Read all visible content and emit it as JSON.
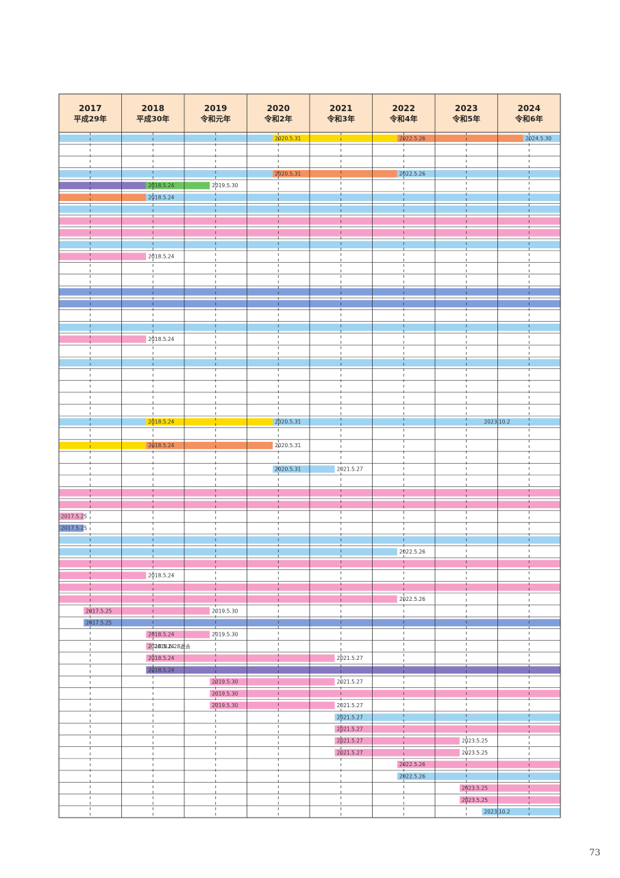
{
  "page_number": "73",
  "colors": {
    "blue": "#9fd3f2",
    "pink": "#f6a0c9",
    "orange": "#f49160",
    "yellow": "#fcdb00",
    "purple": "#8678c0",
    "green": "#6cc460",
    "navy": "#7f9edb",
    "header_bg": "#fde3c8",
    "grid": "#333333"
  },
  "chart_data": {
    "type": "table",
    "title": "",
    "xlim": [
      "2017-01-01",
      "2025-01-01"
    ],
    "years": [
      {
        "year": "2017",
        "era": "平成29年"
      },
      {
        "year": "2018",
        "era": "平成30年"
      },
      {
        "year": "2019",
        "era": "令和元年"
      },
      {
        "year": "2020",
        "era": "令和2年"
      },
      {
        "year": "2021",
        "era": "令和3年"
      },
      {
        "year": "2022",
        "era": "令和4年"
      },
      {
        "year": "2023",
        "era": "令和5年"
      },
      {
        "year": "2024",
        "era": "令和6年"
      }
    ],
    "rows": [
      [
        {
          "s": "2017-01-01",
          "e": "2020-05-31",
          "c": "blue"
        },
        {
          "s": "2020-05-31",
          "e": "2022-05-26",
          "c": "yellow",
          "l": "2020.5.31"
        },
        {
          "s": "2022-05-26",
          "e": "2024-05-30",
          "c": "orange",
          "l": "2022.5.26"
        },
        {
          "s": "2024-05-30",
          "e": "2025-01-01",
          "c": "blue",
          "l": "2024.5.30"
        }
      ],
      [],
      [],
      [
        {
          "s": "2017-01-01",
          "e": "2020-05-31",
          "c": "blue"
        },
        {
          "s": "2020-05-31",
          "e": "2022-05-26",
          "c": "orange",
          "l": "2020.5.31"
        },
        {
          "s": "2022-05-26",
          "e": "2025-01-01",
          "c": "blue",
          "l": "2022.5.26"
        }
      ],
      [
        {
          "s": "2017-01-01",
          "e": "2018-05-24",
          "c": "purple"
        },
        {
          "s": "2018-05-24",
          "e": "2019-05-30",
          "c": "green",
          "l": "2018.5.24"
        },
        {
          "s": "2019-05-30",
          "e": "2019-05-30",
          "c": "blue",
          "l": "2019.5.30"
        }
      ],
      [
        {
          "s": "2017-01-01",
          "e": "2018-05-24",
          "c": "orange"
        },
        {
          "s": "2018-05-24",
          "e": "2025-01-01",
          "c": "blue",
          "l": "2018.5.24"
        }
      ],
      [
        {
          "s": "2017-01-01",
          "e": "2025-01-01",
          "c": "blue"
        }
      ],
      [
        {
          "s": "2017-01-01",
          "e": "2025-01-01",
          "c": "pink"
        }
      ],
      [
        {
          "s": "2017-01-01",
          "e": "2025-01-01",
          "c": "pink"
        }
      ],
      [
        {
          "s": "2017-01-01",
          "e": "2025-01-01",
          "c": "blue"
        }
      ],
      [
        {
          "s": "2017-01-01",
          "e": "2018-05-24",
          "c": "pink"
        },
        {
          "s": "2018-05-24",
          "e": "2018-05-24",
          "c": "pink",
          "l": "2018.5.24"
        }
      ],
      [],
      [],
      [
        {
          "s": "2017-01-01",
          "e": "2025-01-01",
          "c": "navy"
        }
      ],
      [
        {
          "s": "2017-01-01",
          "e": "2025-01-01",
          "c": "navy"
        }
      ],
      [],
      [
        {
          "s": "2017-01-01",
          "e": "2025-01-01",
          "c": "blue"
        }
      ],
      [
        {
          "s": "2017-01-01",
          "e": "2018-05-24",
          "c": "pink"
        },
        {
          "s": "2018-05-24",
          "e": "2018-05-24",
          "c": "pink",
          "l": "2018.5.24"
        }
      ],
      [],
      [
        {
          "s": "2017-01-01",
          "e": "2025-01-01",
          "c": "blue"
        }
      ],
      [],
      [],
      [],
      [],
      [
        {
          "s": "2017-01-01",
          "e": "2018-05-24",
          "c": "blue"
        },
        {
          "s": "2018-05-24",
          "e": "2020-05-31",
          "c": "yellow",
          "l": "2018.5.24"
        },
        {
          "s": "2020-05-31",
          "e": "2023-10-02",
          "c": "blue",
          "l": "2020.5.31"
        },
        {
          "s": "2023-10-02",
          "e": "2025-01-01",
          "c": "blue",
          "l": "2023.10.2"
        }
      ],
      [],
      [
        {
          "s": "2017-01-01",
          "e": "2018-05-24",
          "c": "yellow"
        },
        {
          "s": "2018-05-24",
          "e": "2020-05-31",
          "c": "orange",
          "l": "2018.5.24"
        },
        {
          "s": "2020-05-31",
          "e": "2020-05-31",
          "c": "orange",
          "l": "2020.5.31"
        }
      ],
      [],
      [
        {
          "s": "2020-05-31",
          "e": "2021-05-27",
          "c": "blue",
          "l": "2020.5.31"
        },
        {
          "s": "2021-05-27",
          "e": "2021-05-27",
          "c": "blue",
          "l": "2021.5.27"
        }
      ],
      [],
      [
        {
          "s": "2017-01-01",
          "e": "2025-01-01",
          "c": "pink"
        }
      ],
      [
        {
          "s": "2017-01-01",
          "e": "2025-01-01",
          "c": "pink"
        }
      ],
      [
        {
          "s": "2017-01-01",
          "e": "2017-05-25",
          "c": "pink",
          "l": "2017.5.25",
          "la": "start"
        }
      ],
      [
        {
          "s": "2017-01-01",
          "e": "2017-05-25",
          "c": "navy",
          "l": "2017.5.25",
          "la": "start"
        }
      ],
      [
        {
          "s": "2017-01-01",
          "e": "2025-01-01",
          "c": "blue"
        }
      ],
      [
        {
          "s": "2017-01-01",
          "e": "2022-05-26",
          "c": "blue"
        },
        {
          "s": "2022-05-26",
          "e": "2022-05-26",
          "c": "blue",
          "l": "2022.5.26"
        }
      ],
      [
        {
          "s": "2017-01-01",
          "e": "2025-01-01",
          "c": "pink"
        }
      ],
      [
        {
          "s": "2017-01-01",
          "e": "2018-05-24",
          "c": "pink"
        },
        {
          "s": "2018-05-24",
          "e": "2018-05-24",
          "c": "pink",
          "l": "2018.5.24"
        }
      ],
      [
        {
          "s": "2017-01-01",
          "e": "2025-01-01",
          "c": "pink"
        }
      ],
      [
        {
          "s": "2017-01-01",
          "e": "2022-05-26",
          "c": "pink"
        },
        {
          "s": "2022-05-26",
          "e": "2022-05-26",
          "c": "pink",
          "l": "2022.5.26"
        }
      ],
      [
        {
          "s": "2017-05-25",
          "e": "2019-05-30",
          "c": "pink",
          "l": "2017.5.25"
        },
        {
          "s": "2019-05-30",
          "e": "2019-05-30",
          "c": "pink",
          "l": "2019.5.30"
        }
      ],
      [
        {
          "s": "2017-05-25",
          "e": "2025-01-01",
          "c": "navy",
          "l": "2017.5.25"
        }
      ],
      [
        {
          "s": "2018-05-24",
          "e": "2019-05-30",
          "c": "pink",
          "l": "2018.5.24"
        },
        {
          "s": "2019-05-30",
          "e": "2019-05-30",
          "c": "pink",
          "l": "2019.5.30"
        }
      ],
      [
        {
          "s": "2018-05-24",
          "e": "2018-06-28",
          "c": "pink",
          "l": "2018.5.24"
        },
        {
          "s": "2018-06-28",
          "e": "2018-06-28",
          "c": "none",
          "l": "2018.6.28逝去"
        }
      ],
      [
        {
          "s": "2018-05-24",
          "e": "2021-05-27",
          "c": "pink",
          "l": "2018.5.24"
        },
        {
          "s": "2021-05-27",
          "e": "2021-05-27",
          "c": "pink",
          "l": "2021.5.27"
        }
      ],
      [
        {
          "s": "2018-05-24",
          "e": "2025-01-01",
          "c": "purple",
          "l": "2018.5.24"
        }
      ],
      [
        {
          "s": "2019-05-30",
          "e": "2021-05-27",
          "c": "pink",
          "l": "2019.5.30"
        },
        {
          "s": "2021-05-27",
          "e": "2021-05-27",
          "c": "pink",
          "l": "2021.5.27"
        }
      ],
      [
        {
          "s": "2019-05-30",
          "e": "2025-01-01",
          "c": "pink",
          "l": "2019.5.30"
        }
      ],
      [
        {
          "s": "2019-05-30",
          "e": "2021-05-27",
          "c": "pink",
          "l": "2019.5.30"
        },
        {
          "s": "2021-05-27",
          "e": "2021-05-27",
          "c": "pink",
          "l": "2021.5.27"
        }
      ],
      [
        {
          "s": "2021-05-27",
          "e": "2025-01-01",
          "c": "blue",
          "l": "2021.5.27"
        }
      ],
      [
        {
          "s": "2021-05-27",
          "e": "2025-01-01",
          "c": "pink",
          "l": "2021.5.27"
        }
      ],
      [
        {
          "s": "2021-05-27",
          "e": "2023-05-25",
          "c": "pink",
          "l": "2021.5.27"
        },
        {
          "s": "2023-05-25",
          "e": "2023-05-25",
          "c": "pink",
          "l": "2023.5.25"
        }
      ],
      [
        {
          "s": "2021-05-27",
          "e": "2023-05-25",
          "c": "pink",
          "l": "2021.5.27"
        },
        {
          "s": "2023-05-25",
          "e": "2023-05-25",
          "c": "pink",
          "l": "2023.5.25"
        }
      ],
      [
        {
          "s": "2022-05-26",
          "e": "2025-01-01",
          "c": "pink",
          "l": "2022.5.26"
        }
      ],
      [
        {
          "s": "2022-05-26",
          "e": "2025-01-01",
          "c": "blue",
          "l": "2022.5.26"
        }
      ],
      [
        {
          "s": "2023-05-25",
          "e": "2025-01-01",
          "c": "pink",
          "l": "2023.5.25"
        }
      ],
      [
        {
          "s": "2023-05-25",
          "e": "2025-01-01",
          "c": "pink",
          "l": "2023.5.25"
        }
      ],
      [
        {
          "s": "2023-10-02",
          "e": "2025-01-01",
          "c": "blue",
          "l": "2023.10.2"
        }
      ]
    ]
  }
}
